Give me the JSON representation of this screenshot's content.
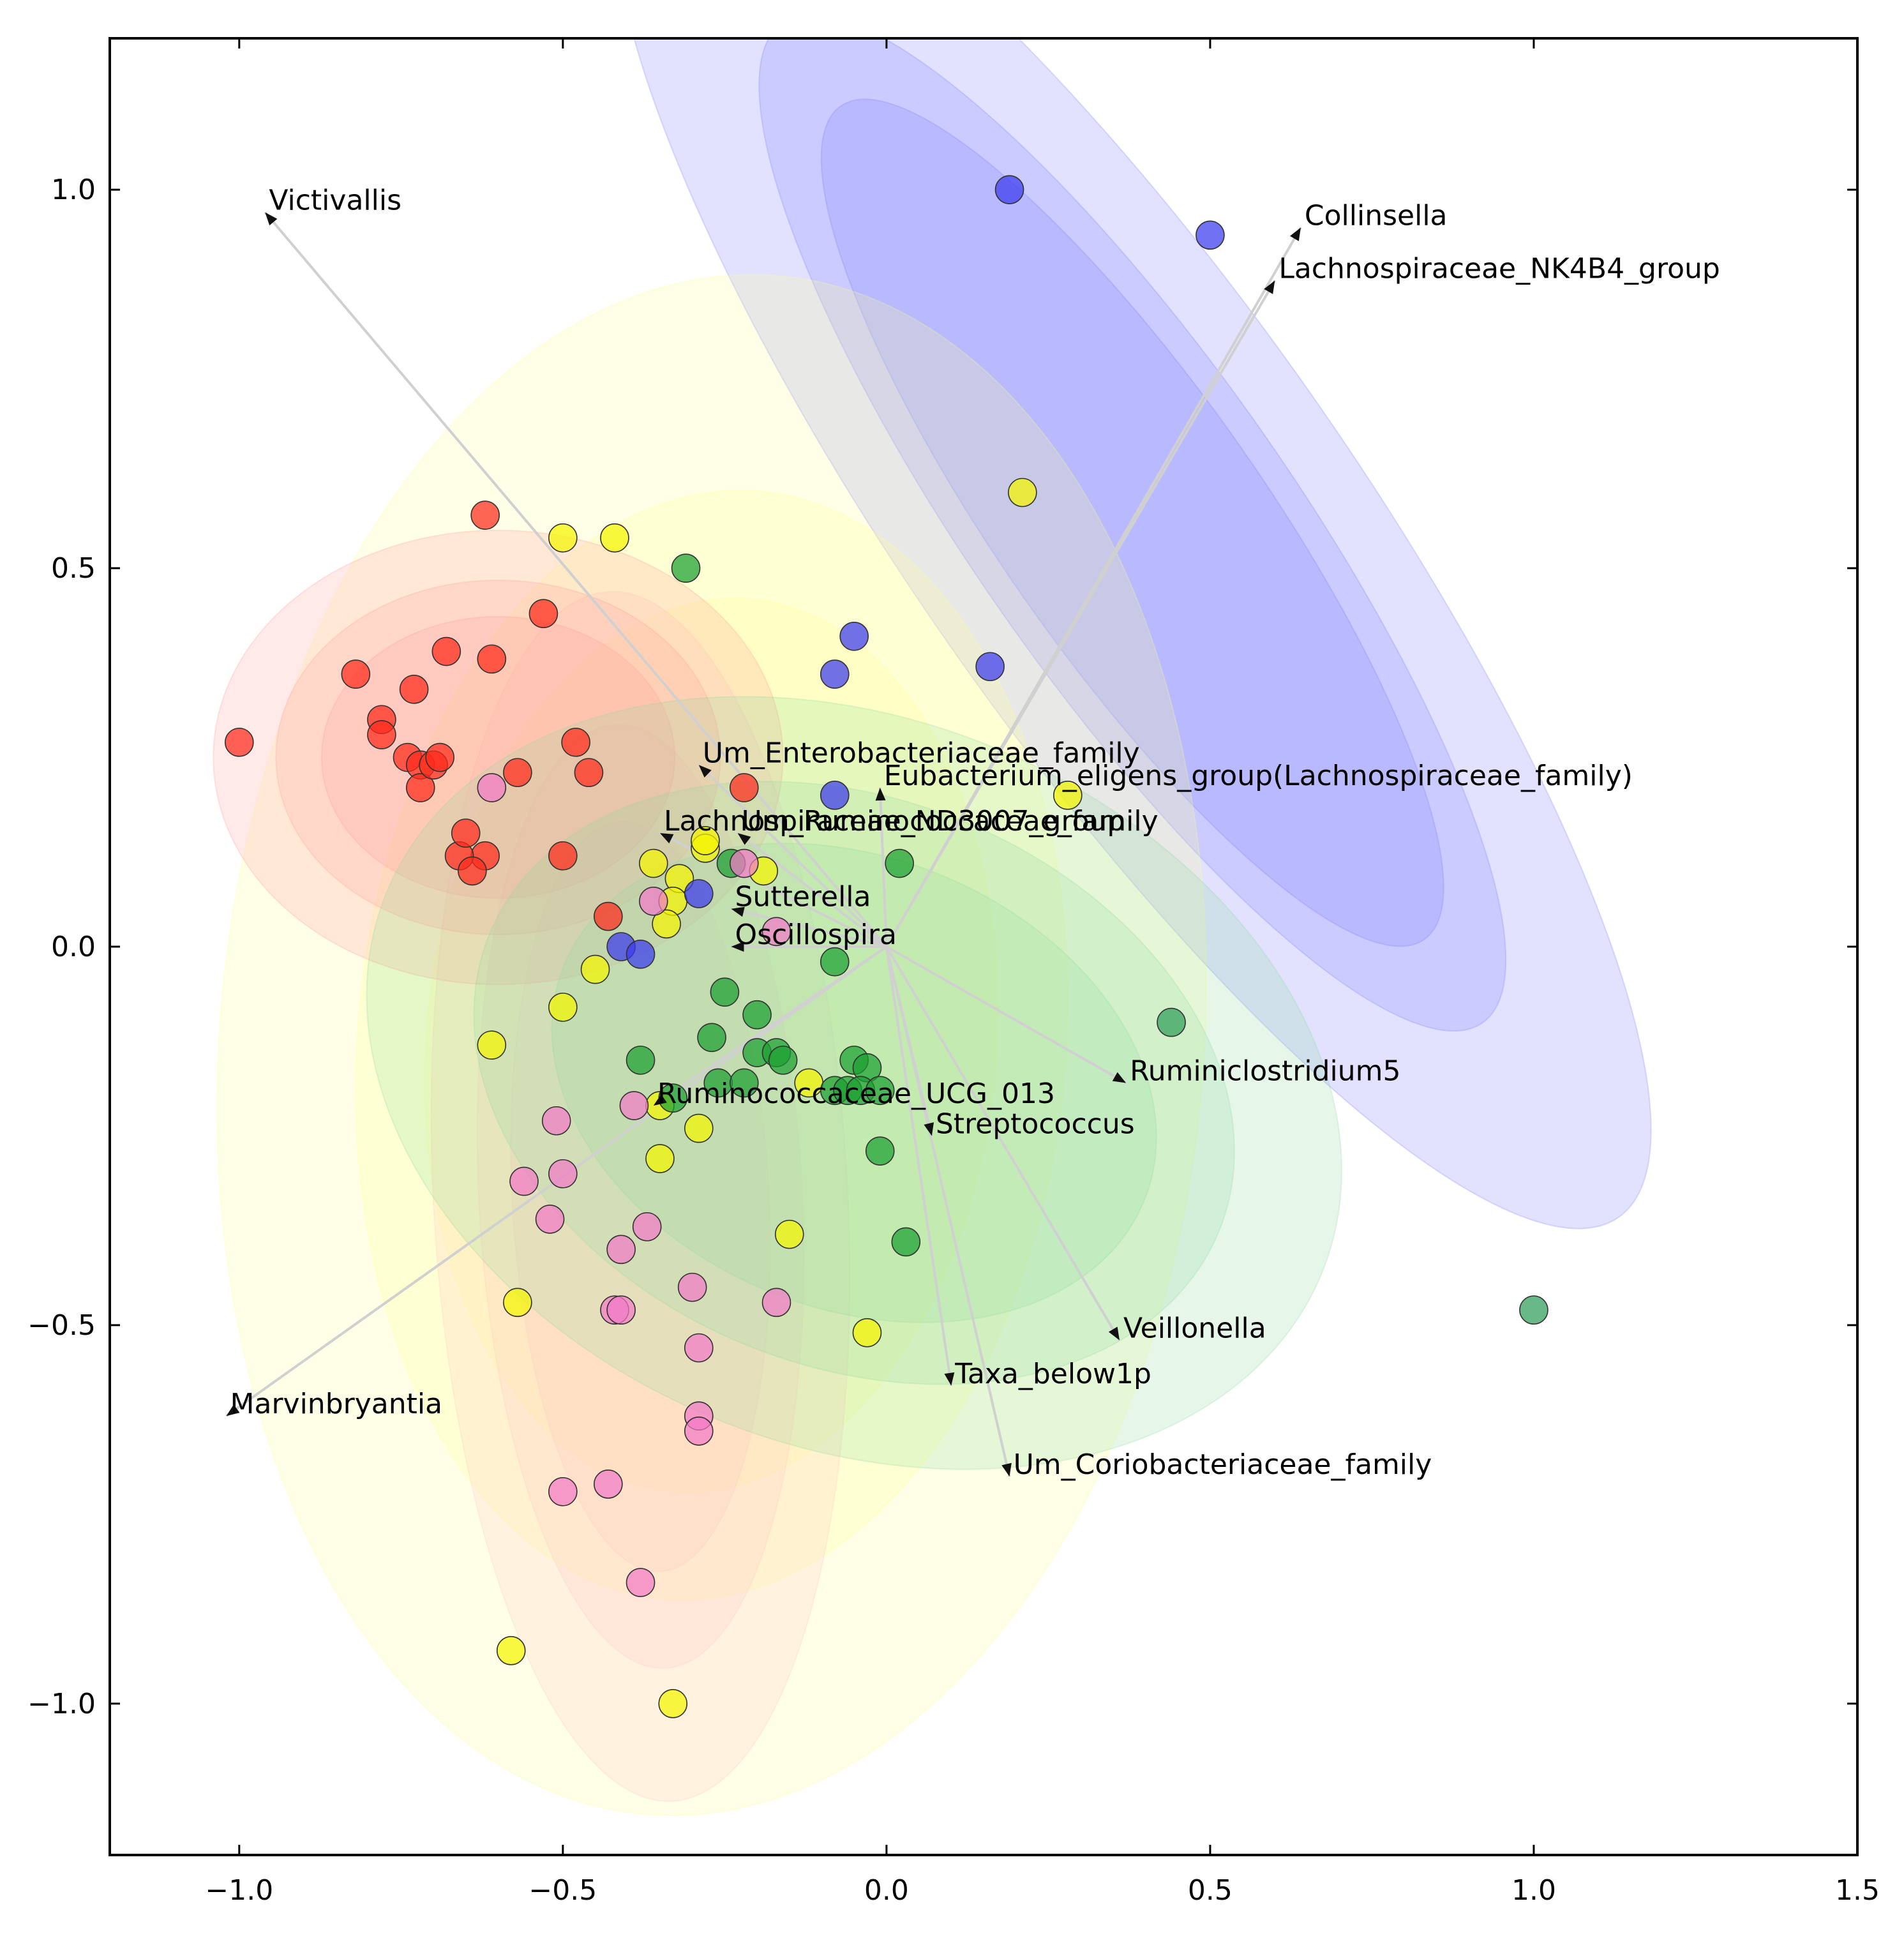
{
  "chart_data": {
    "type": "scatter",
    "title": "",
    "xlabel": "",
    "ylabel": "",
    "xlim": [
      -1.2,
      1.5
    ],
    "ylim": [
      -1.2,
      1.2
    ],
    "grid": false,
    "legend": "none",
    "xticks": [
      {
        "value": -1.0,
        "label": "−1.0"
      },
      {
        "value": -0.5,
        "label": "−0.5"
      },
      {
        "value": 0.0,
        "label": "0.0"
      },
      {
        "value": 0.5,
        "label": "0.5"
      },
      {
        "value": 1.0,
        "label": "1.0"
      },
      {
        "value": 1.5,
        "label": "1.5"
      }
    ],
    "yticks": [
      {
        "value": 1.0,
        "label": "1.0"
      },
      {
        "value": 0.5,
        "label": "0.5"
      },
      {
        "value": 0.0,
        "label": "0.0"
      },
      {
        "value": -0.5,
        "label": "−0.5"
      },
      {
        "value": -1.0,
        "label": "−1.0"
      }
    ],
    "colors": {
      "red": "#ff2a1a",
      "yellow": "#f5f500",
      "blue": "#3a3aee",
      "green": "#1aa030",
      "pink": "#f27ac8",
      "teal": "#2f9e5a"
    },
    "ellipses": [
      {
        "group": "blue",
        "cx": 0.38,
        "cy": 0.56,
        "rx": 0.34,
        "ry": 1.12,
        "angle_deg": 35,
        "fill": "#7a7aff",
        "levels": [
          1.0,
          0.72,
          0.6
        ]
      },
      {
        "group": "yellow",
        "cx": -0.27,
        "cy": -0.13,
        "rx": 0.76,
        "ry": 1.02,
        "angle_deg": -5,
        "fill": "#ffff90",
        "levels": [
          1.0,
          0.72,
          0.58
        ]
      },
      {
        "group": "pink",
        "cx": -0.38,
        "cy": -0.33,
        "rx": 0.32,
        "ry": 0.8,
        "angle_deg": 3,
        "fill": "#ffc6c6",
        "levels": [
          1.0,
          0.78,
          0.62
        ]
      },
      {
        "group": "red",
        "cx": -0.6,
        "cy": 0.25,
        "rx": 0.44,
        "ry": 0.3,
        "angle_deg": 0,
        "fill": "#ff9a9a",
        "levels": [
          1.0,
          0.78,
          0.62
        ]
      },
      {
        "group": "green",
        "cx": -0.05,
        "cy": -0.18,
        "rx": 0.78,
        "ry": 0.48,
        "angle_deg": -22,
        "fill": "#8fd9a0",
        "levels": [
          1.0,
          0.78,
          0.62
        ]
      }
    ],
    "series": [
      {
        "name": "red",
        "color": "#ff2a1a",
        "points": [
          [
            -1.0,
            0.27
          ],
          [
            -0.82,
            0.36
          ],
          [
            -0.78,
            0.3
          ],
          [
            -0.78,
            0.28
          ],
          [
            -0.73,
            0.34
          ],
          [
            -0.74,
            0.25
          ],
          [
            -0.72,
            0.24
          ],
          [
            -0.72,
            0.21
          ],
          [
            -0.7,
            0.24
          ],
          [
            -0.69,
            0.25
          ],
          [
            -0.68,
            0.39
          ],
          [
            -0.61,
            0.38
          ],
          [
            -0.62,
            0.57
          ],
          [
            -0.53,
            0.44
          ],
          [
            -0.48,
            0.27
          ],
          [
            -0.46,
            0.23
          ],
          [
            -0.57,
            0.23
          ],
          [
            -0.62,
            0.12
          ],
          [
            -0.66,
            0.12
          ],
          [
            -0.64,
            0.1
          ],
          [
            -0.65,
            0.15
          ],
          [
            -0.5,
            0.12
          ],
          [
            -0.43,
            0.04
          ],
          [
            -0.22,
            0.21
          ]
        ]
      },
      {
        "name": "yellow",
        "color": "#f5f500",
        "points": [
          [
            -0.5,
            0.54
          ],
          [
            -0.42,
            0.54
          ],
          [
            0.21,
            0.6
          ],
          [
            0.28,
            0.2
          ],
          [
            -0.36,
            0.11
          ],
          [
            -0.32,
            0.09
          ],
          [
            -0.28,
            0.13
          ],
          [
            -0.28,
            0.14
          ],
          [
            -0.19,
            0.1
          ],
          [
            -0.33,
            0.06
          ],
          [
            -0.34,
            0.03
          ],
          [
            -0.45,
            -0.03
          ],
          [
            -0.5,
            -0.08
          ],
          [
            -0.61,
            -0.13
          ],
          [
            -0.35,
            -0.21
          ],
          [
            -0.29,
            -0.24
          ],
          [
            -0.35,
            -0.28
          ],
          [
            -0.12,
            -0.18
          ],
          [
            -0.15,
            -0.38
          ],
          [
            -0.57,
            -0.47
          ],
          [
            -0.03,
            -0.51
          ],
          [
            -0.58,
            -0.93
          ],
          [
            -0.33,
            -1.0
          ]
        ]
      },
      {
        "name": "blue",
        "color": "#3a3aee",
        "points": [
          [
            0.19,
            1.0
          ],
          [
            0.5,
            0.94
          ],
          [
            -0.05,
            0.41
          ],
          [
            -0.08,
            0.36
          ],
          [
            0.16,
            0.37
          ],
          [
            -0.08,
            0.2
          ],
          [
            -0.29,
            0.07
          ],
          [
            -0.41,
            0.0
          ],
          [
            -0.38,
            -0.01
          ]
        ]
      },
      {
        "name": "green",
        "color": "#1aa030",
        "points": [
          [
            -0.31,
            0.5
          ],
          [
            0.02,
            0.11
          ],
          [
            -0.24,
            0.11
          ],
          [
            -0.08,
            -0.02
          ],
          [
            -0.25,
            -0.06
          ],
          [
            -0.2,
            -0.09
          ],
          [
            -0.27,
            -0.12
          ],
          [
            -0.38,
            -0.15
          ],
          [
            -0.2,
            -0.14
          ],
          [
            -0.17,
            -0.14
          ],
          [
            -0.16,
            -0.15
          ],
          [
            -0.05,
            -0.15
          ],
          [
            -0.03,
            -0.16
          ],
          [
            -0.26,
            -0.18
          ],
          [
            -0.22,
            -0.18
          ],
          [
            -0.08,
            -0.19
          ],
          [
            -0.06,
            -0.19
          ],
          [
            -0.04,
            -0.19
          ],
          [
            -0.01,
            -0.19
          ],
          [
            -0.33,
            -0.2
          ],
          [
            -0.01,
            -0.27
          ],
          [
            0.03,
            -0.39
          ]
        ]
      },
      {
        "name": "pink",
        "color": "#f27ac8",
        "points": [
          [
            -0.61,
            0.21
          ],
          [
            -0.36,
            0.06
          ],
          [
            -0.17,
            0.02
          ],
          [
            -0.22,
            0.11
          ],
          [
            -0.39,
            -0.21
          ],
          [
            -0.51,
            -0.23
          ],
          [
            -0.56,
            -0.31
          ],
          [
            -0.5,
            -0.3
          ],
          [
            -0.52,
            -0.36
          ],
          [
            -0.37,
            -0.37
          ],
          [
            -0.41,
            -0.4
          ],
          [
            -0.3,
            -0.45
          ],
          [
            -0.17,
            -0.47
          ],
          [
            -0.42,
            -0.48
          ],
          [
            -0.41,
            -0.48
          ],
          [
            -0.29,
            -0.53
          ],
          [
            -0.29,
            -0.62
          ],
          [
            -0.29,
            -0.64
          ],
          [
            -0.43,
            -0.71
          ],
          [
            -0.5,
            -0.72
          ],
          [
            -0.38,
            -0.84
          ]
        ]
      },
      {
        "name": "teal",
        "color": "#2f9e5a",
        "points": [
          [
            0.44,
            -0.1
          ],
          [
            1.0,
            -0.48
          ]
        ]
      }
    ],
    "vectors": [
      {
        "label": "Victivallis",
        "x": -0.96,
        "y": 0.97
      },
      {
        "label": "Collinsella",
        "x": 0.64,
        "y": 0.95
      },
      {
        "label": "Lachnospiraceae_NK4B4_group",
        "x": 0.6,
        "y": 0.88
      },
      {
        "label": "Um_Enterobacteriaceae_family",
        "x": -0.29,
        "y": 0.24
      },
      {
        "label": "Eubacterium_eligens_group(Lachnospiraceae_family)",
        "x": -0.01,
        "y": 0.21
      },
      {
        "label": "Um_Ruminococcaceae_family",
        "x": -0.23,
        "y": 0.15
      },
      {
        "label": "Lachnospiraceae_ND3007_group",
        "x": -0.35,
        "y": 0.15
      },
      {
        "label": "Sutterella",
        "x": -0.24,
        "y": 0.05
      },
      {
        "label": "Oscillospira",
        "x": -0.24,
        "y": 0.0
      },
      {
        "label": "Ruminococcaceae_UCG_013",
        "x": -0.36,
        "y": -0.21
      },
      {
        "label": "Ruminiclostridium5",
        "x": 0.37,
        "y": -0.18
      },
      {
        "label": "Streptococcus",
        "x": 0.07,
        "y": -0.25
      },
      {
        "label": "Veillonella",
        "x": 0.36,
        "y": -0.52
      },
      {
        "label": "Taxa_below1p",
        "x": 0.1,
        "y": -0.58
      },
      {
        "label": "Um_Coriobacteriaceae_family",
        "x": 0.19,
        "y": -0.7
      },
      {
        "label": "Marvinbryantia",
        "x": -1.02,
        "y": -0.62
      }
    ]
  }
}
